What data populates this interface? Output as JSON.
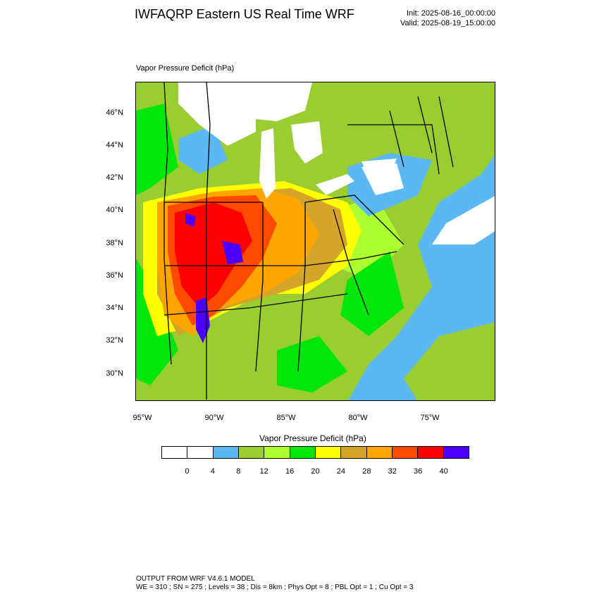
{
  "header": {
    "title": "IWFAQRP Eastern US Real Time WRF",
    "init": "Init: 2025-08-16_00:00:00",
    "valid": "Valid: 2025-08-19_15:00:00"
  },
  "map": {
    "field_label": "Vapor Pressure Deficit   (hPa)",
    "lat_labels": [
      "46°N",
      "44°N",
      "42°N",
      "40°N",
      "38°N",
      "36°N",
      "34°N",
      "32°N",
      "30°N"
    ],
    "lon_labels": [
      "95°W",
      "90°W",
      "85°W",
      "80°W",
      "75°W"
    ],
    "ocean_color": "#5cb8f5",
    "water_color": "#ffffff"
  },
  "colorbar": {
    "title": "Vapor Pressure Deficit   (hPa)",
    "colors": [
      "#ffffff",
      "#ffffff",
      "#5cb8f5",
      "#9acd32",
      "#adff2f",
      "#00e60a",
      "#ffff00",
      "#d4a528",
      "#ffa500",
      "#ff4a00",
      "#ff0000",
      "#4b00ff"
    ],
    "ticks": [
      "0",
      "4",
      "8",
      "12",
      "16",
      "20",
      "24",
      "28",
      "32",
      "36",
      "40"
    ]
  },
  "footer": {
    "line1": "OUTPUT FROM WRF V4.6.1 MODEL",
    "line2": "WE = 310 ; SN = 275 ; Levels = 38 ; Dis = 8km ; Phys Opt = 8 ; PBL Opt = 1 ; Cu Opt = 3"
  }
}
